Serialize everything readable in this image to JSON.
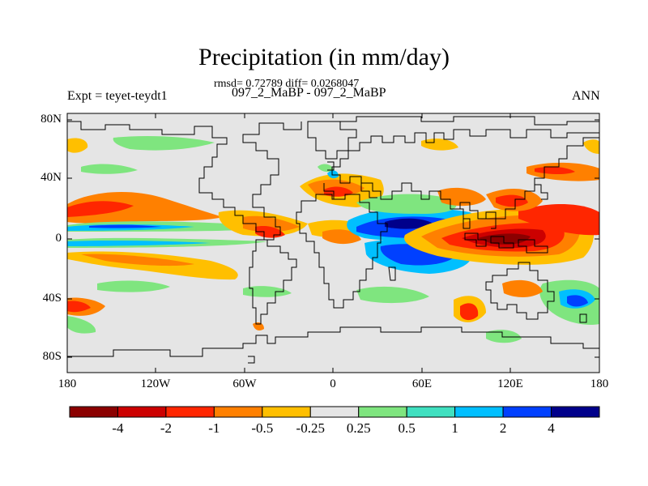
{
  "title": "Precipitation (in mm/day)",
  "stats_line": "rmsd= 0.72789 diff= 0.0268047",
  "cases_line": "097_2_MaBP - 097_2_MaBP",
  "expt_label": "Expt = teyet-teydt1",
  "season_label": "ANN",
  "lat_labels": [
    "80N",
    "40N",
    "0",
    "40S",
    "80S"
  ],
  "lon_labels": [
    "180",
    "120W",
    "60W",
    "0",
    "60E",
    "120E",
    "180"
  ],
  "colorbar": {
    "labels": [
      "-4",
      "-2",
      "-1",
      "-0.5",
      "-0.25",
      "0.25",
      "0.5",
      "1",
      "2",
      "4"
    ],
    "colors": [
      "#8b0000",
      "#cc0000",
      "#ff2600",
      "#ff8000",
      "#ffbf00",
      "#e5e5e5",
      "#7fe57f",
      "#40e0c0",
      "#00bfff",
      "#0040ff",
      "#00008b"
    ]
  }
}
